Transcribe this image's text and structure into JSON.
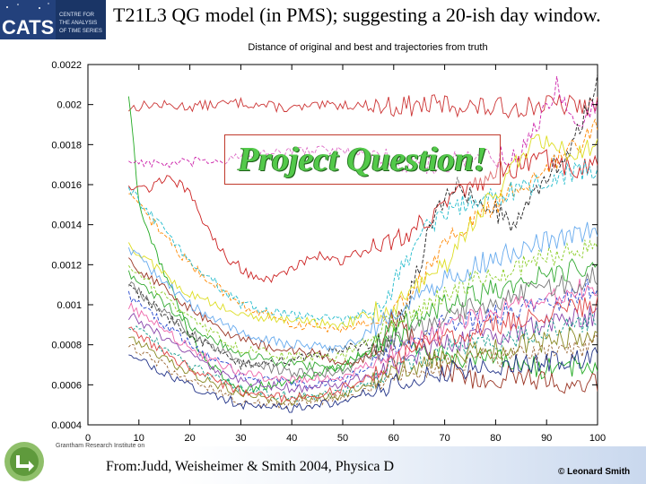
{
  "slide": {
    "title": "T21L3 QG model (in PMS); suggesting a 20-ish day window.",
    "callout": "Project Question!",
    "citation": "From:Judd, Weisheimer & Smith 2004, Physica D",
    "copyright": "© Leonard Smith",
    "logo": {
      "acronym": "CATS",
      "lines": [
        "CENTRE FOR",
        "THE ANALYSIS",
        "OF TIME SERIES"
      ]
    },
    "footer_institute": "Grantham Research Institute on"
  },
  "colors": {
    "frame": "#000000",
    "callout_border": "#c0392b",
    "callout_text": "#53c94a",
    "logo_bg": "#1a3566"
  },
  "chart_data": {
    "type": "line",
    "title": "Distance of original and best and trajectories from truth",
    "xlabel": "",
    "ylabel": "",
    "xlim": [
      0,
      100
    ],
    "ylim": [
      0.0004,
      0.0022
    ],
    "x_ticks": [
      0,
      10,
      20,
      30,
      40,
      50,
      60,
      70,
      80,
      90,
      100
    ],
    "y_ticks": [
      0.0004,
      0.0006,
      0.0008,
      0.001,
      0.0012,
      0.0014,
      0.0016,
      0.0018,
      0.002,
      0.0022
    ],
    "x_tick_labels": [
      "0",
      "10",
      "20",
      "30",
      "40",
      "50",
      "60",
      "70",
      "80",
      "90",
      "100"
    ],
    "y_tick_labels": [
      "0.0004",
      "0.0006",
      "0.0008",
      "0.001",
      "0.0012",
      "0.0014",
      "0.0016",
      "0.0018",
      "0.002",
      "0.0022"
    ],
    "x_data_range": [
      8,
      100
    ],
    "series": [
      {
        "name": "original (top, red)",
        "color": "#cc3333",
        "dash": "",
        "keys": [
          [
            8,
            0.00198
          ],
          [
            12,
            0.002
          ],
          [
            20,
            0.00199
          ],
          [
            30,
            0.00201
          ],
          [
            40,
            0.00198
          ],
          [
            50,
            0.002
          ],
          [
            60,
            0.00199
          ],
          [
            70,
            0.002
          ],
          [
            80,
            0.00198
          ],
          [
            90,
            0.002
          ],
          [
            100,
            0.00199
          ]
        ]
      },
      {
        "name": "green spike",
        "color": "#22aa22",
        "dash": "",
        "keys": [
          [
            8,
            0.00205
          ],
          [
            9,
            0.00178
          ],
          [
            10,
            0.0015
          ],
          [
            12,
            0.00135
          ],
          [
            16,
            0.0011
          ],
          [
            20,
            0.00085
          ],
          [
            24,
            0.0007
          ],
          [
            28,
            0.0006
          ],
          [
            32,
            0.00058
          ],
          [
            40,
            0.00062
          ],
          [
            50,
            0.0007
          ],
          [
            60,
            0.00085
          ],
          [
            70,
            0.00075
          ],
          [
            80,
            0.00072
          ],
          [
            90,
            0.00068
          ],
          [
            100,
            0.0007
          ]
        ]
      },
      {
        "name": "red upper",
        "color": "#cc2222",
        "dash": "",
        "keys": [
          [
            8,
            0.0016
          ],
          [
            12,
            0.00158
          ],
          [
            16,
            0.00165
          ],
          [
            20,
            0.00155
          ],
          [
            24,
            0.00135
          ],
          [
            28,
            0.00122
          ],
          [
            32,
            0.00115
          ],
          [
            36,
            0.00112
          ],
          [
            40,
            0.00118
          ],
          [
            44,
            0.00125
          ],
          [
            50,
            0.00122
          ],
          [
            55,
            0.00128
          ],
          [
            60,
            0.00132
          ],
          [
            65,
            0.0014
          ],
          [
            70,
            0.0015
          ],
          [
            75,
            0.00158
          ],
          [
            80,
            0.00165
          ],
          [
            85,
            0.0017
          ],
          [
            90,
            0.00172
          ],
          [
            95,
            0.00168
          ],
          [
            100,
            0.0017
          ]
        ]
      },
      {
        "name": "magenta dash",
        "color": "#cc22aa",
        "dash": "4,2",
        "keys": [
          [
            8,
            0.00172
          ],
          [
            15,
            0.0017
          ],
          [
            25,
            0.00172
          ],
          [
            35,
            0.00175
          ],
          [
            45,
            0.00178
          ],
          [
            55,
            0.00175
          ],
          [
            65,
            0.0017
          ],
          [
            75,
            0.00172
          ],
          [
            85,
            0.00175
          ],
          [
            92,
            0.0021
          ],
          [
            96,
            0.0019
          ],
          [
            100,
            0.002
          ]
        ]
      },
      {
        "name": "black dash",
        "color": "#222222",
        "dash": "4,2",
        "keys": [
          [
            8,
            0.0011
          ],
          [
            20,
            0.00085
          ],
          [
            30,
            0.0007
          ],
          [
            40,
            0.00072
          ],
          [
            50,
            0.00078
          ],
          [
            60,
            0.00082
          ],
          [
            64,
            0.0011
          ],
          [
            68,
            0.00145
          ],
          [
            72,
            0.0016
          ],
          [
            78,
            0.0015
          ],
          [
            84,
            0.0014
          ],
          [
            90,
            0.00165
          ],
          [
            95,
            0.0018
          ],
          [
            100,
            0.0021
          ]
        ]
      },
      {
        "name": "orange dash",
        "color": "#ff8800",
        "dash": "4,2",
        "keys": [
          [
            8,
            0.00155
          ],
          [
            20,
            0.0012
          ],
          [
            30,
            0.001
          ],
          [
            40,
            0.0009
          ],
          [
            50,
            0.00088
          ],
          [
            60,
            0.00095
          ],
          [
            66,
            0.00115
          ],
          [
            72,
            0.00135
          ],
          [
            80,
            0.0015
          ],
          [
            88,
            0.00165
          ],
          [
            94,
            0.00175
          ],
          [
            100,
            0.0019
          ]
        ]
      },
      {
        "name": "cyan dash",
        "color": "#22bbcc",
        "dash": "4,2",
        "keys": [
          [
            8,
            0.00158
          ],
          [
            20,
            0.00122
          ],
          [
            30,
            0.001
          ],
          [
            40,
            0.00095
          ],
          [
            50,
            0.00092
          ],
          [
            58,
            0.001
          ],
          [
            62,
            0.0012
          ],
          [
            66,
            0.00138
          ],
          [
            72,
            0.00148
          ],
          [
            80,
            0.00155
          ],
          [
            88,
            0.0016
          ],
          [
            94,
            0.00165
          ],
          [
            100,
            0.00168
          ]
        ]
      },
      {
        "name": "yellow",
        "color": "#dddd22",
        "dash": "",
        "keys": [
          [
            8,
            0.0013
          ],
          [
            20,
            0.00105
          ],
          [
            30,
            0.00095
          ],
          [
            40,
            0.00092
          ],
          [
            50,
            0.0009
          ],
          [
            60,
            0.001
          ],
          [
            70,
            0.0012
          ],
          [
            78,
            0.0015
          ],
          [
            84,
            0.0017
          ],
          [
            88,
            0.00185
          ],
          [
            94,
            0.00175
          ],
          [
            100,
            0.0018
          ]
        ]
      },
      {
        "name": "dark red mid",
        "color": "#993322",
        "dash": "",
        "keys": [
          [
            8,
            0.00122
          ],
          [
            20,
            0.00098
          ],
          [
            28,
            0.00085
          ],
          [
            36,
            0.00078
          ],
          [
            44,
            0.00076
          ],
          [
            52,
            0.0007
          ],
          [
            58,
            0.0008
          ],
          [
            60,
            0.00095
          ],
          [
            63,
            0.00085
          ],
          [
            68,
            0.0007
          ],
          [
            76,
            0.00062
          ],
          [
            84,
            0.00065
          ],
          [
            92,
            0.0006
          ],
          [
            100,
            0.00062
          ]
        ]
      },
      {
        "name": "blue dash",
        "color": "#2244cc",
        "dash": "4,2",
        "keys": [
          [
            8,
            0.00105
          ],
          [
            20,
            0.0008
          ],
          [
            30,
            0.00065
          ],
          [
            40,
            0.0006
          ],
          [
            50,
            0.00062
          ],
          [
            60,
            0.00078
          ],
          [
            70,
            0.0009
          ],
          [
            80,
            0.00095
          ],
          [
            90,
            0.001
          ],
          [
            100,
            0.0011
          ]
        ]
      },
      {
        "name": "green mid",
        "color": "#33aa33",
        "dash": "",
        "keys": [
          [
            8,
            0.00115
          ],
          [
            20,
            0.0009
          ],
          [
            30,
            0.00075
          ],
          [
            40,
            0.0007
          ],
          [
            50,
            0.00068
          ],
          [
            60,
            0.00088
          ],
          [
            70,
            0.001
          ],
          [
            80,
            0.00108
          ],
          [
            90,
            0.00115
          ],
          [
            100,
            0.0012
          ]
        ]
      },
      {
        "name": "purple",
        "color": "#8844aa",
        "dash": "",
        "keys": [
          [
            8,
            0.00095
          ],
          [
            20,
            0.00075
          ],
          [
            30,
            0.00062
          ],
          [
            40,
            0.00058
          ],
          [
            50,
            0.0006
          ],
          [
            60,
            0.0007
          ],
          [
            70,
            0.0008
          ],
          [
            80,
            0.00085
          ],
          [
            90,
            0.0009
          ],
          [
            100,
            0.00095
          ]
        ]
      },
      {
        "name": "pink",
        "color": "#ee66aa",
        "dash": "",
        "keys": [
          [
            8,
            0.001
          ],
          [
            20,
            0.00078
          ],
          [
            30,
            0.00066
          ],
          [
            40,
            0.00062
          ],
          [
            50,
            0.00064
          ],
          [
            60,
            0.00076
          ],
          [
            70,
            0.00088
          ],
          [
            80,
            0.00098
          ],
          [
            90,
            0.00104
          ],
          [
            100,
            0.0011
          ]
        ]
      },
      {
        "name": "teal dash",
        "color": "#119988",
        "dash": "3,2",
        "keys": [
          [
            8,
            0.0009
          ],
          [
            20,
            0.0007
          ],
          [
            30,
            0.00058
          ],
          [
            40,
            0.00054
          ],
          [
            50,
            0.00056
          ],
          [
            60,
            0.00068
          ],
          [
            70,
            0.00078
          ],
          [
            80,
            0.00082
          ],
          [
            90,
            0.00088
          ],
          [
            100,
            0.00092
          ]
        ]
      },
      {
        "name": "olive",
        "color": "#888822",
        "dash": "",
        "keys": [
          [
            8,
            0.00085
          ],
          [
            20,
            0.00066
          ],
          [
            30,
            0.00055
          ],
          [
            40,
            0.00052
          ],
          [
            50,
            0.00055
          ],
          [
            60,
            0.00066
          ],
          [
            70,
            0.00074
          ],
          [
            80,
            0.00078
          ],
          [
            90,
            0.00082
          ],
          [
            100,
            0.00085
          ]
        ]
      },
      {
        "name": "brown dash",
        "color": "#996633",
        "dash": "3,2",
        "keys": [
          [
            8,
            0.0008
          ],
          [
            20,
            0.00062
          ],
          [
            30,
            0.00052
          ],
          [
            40,
            0.0005
          ],
          [
            50,
            0.00054
          ],
          [
            60,
            0.00062
          ],
          [
            70,
            0.0007
          ],
          [
            80,
            0.00074
          ],
          [
            90,
            0.00076
          ],
          [
            100,
            0.0008
          ]
        ]
      },
      {
        "name": "grey",
        "color": "#777777",
        "dash": "",
        "keys": [
          [
            8,
            0.0011
          ],
          [
            20,
            0.00086
          ],
          [
            30,
            0.00072
          ],
          [
            40,
            0.00066
          ],
          [
            50,
            0.00066
          ],
          [
            60,
            0.00082
          ],
          [
            70,
            0.00094
          ],
          [
            80,
            0.00102
          ],
          [
            90,
            0.00108
          ],
          [
            100,
            0.00114
          ]
        ]
      },
      {
        "name": "lime dash",
        "color": "#88cc22",
        "dash": "3,2",
        "keys": [
          [
            8,
            0.0012
          ],
          [
            20,
            0.00092
          ],
          [
            30,
            0.00078
          ],
          [
            40,
            0.00074
          ],
          [
            50,
            0.00074
          ],
          [
            60,
            0.00092
          ],
          [
            70,
            0.00106
          ],
          [
            80,
            0.00116
          ],
          [
            90,
            0.00124
          ],
          [
            100,
            0.0013
          ]
        ]
      },
      {
        "name": "navy",
        "color": "#223388",
        "dash": "",
        "keys": [
          [
            8,
            0.00075
          ],
          [
            20,
            0.0006
          ],
          [
            30,
            0.0005
          ],
          [
            40,
            0.00048
          ],
          [
            50,
            0.00052
          ],
          [
            60,
            0.0006
          ],
          [
            70,
            0.00066
          ],
          [
            80,
            0.0007
          ],
          [
            90,
            0.00072
          ],
          [
            100,
            0.00074
          ]
        ]
      },
      {
        "name": "red low",
        "color": "#dd4444",
        "dash": "",
        "keys": [
          [
            8,
            0.00088
          ],
          [
            20,
            0.00068
          ],
          [
            30,
            0.00057
          ],
          [
            40,
            0.00053
          ],
          [
            50,
            0.00058
          ],
          [
            60,
            0.00072
          ],
          [
            70,
            0.00084
          ],
          [
            80,
            0.0009
          ],
          [
            90,
            0.00096
          ],
          [
            100,
            0.001
          ]
        ]
      },
      {
        "name": "sky",
        "color": "#66aaee",
        "dash": "",
        "keys": [
          [
            8,
            0.00128
          ],
          [
            20,
            0.001
          ],
          [
            30,
            0.00085
          ],
          [
            40,
            0.0008
          ],
          [
            50,
            0.00078
          ],
          [
            60,
            0.00096
          ],
          [
            70,
            0.00112
          ],
          [
            80,
            0.00124
          ],
          [
            90,
            0.00132
          ],
          [
            100,
            0.00138
          ]
        ]
      }
    ]
  }
}
